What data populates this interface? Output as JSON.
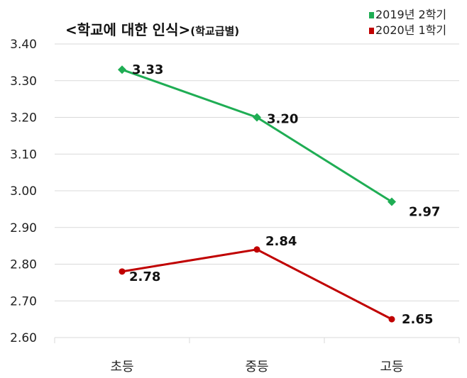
{
  "chart_data": {
    "type": "line",
    "title": "<학교에 대한 인식>",
    "subtitle": "(학교급별)",
    "categories": [
      "초등",
      "중등",
      "고등"
    ],
    "series": [
      {
        "name": "2019년 2학기",
        "values": [
          3.33,
          3.2,
          2.97
        ],
        "color": "#1fad54",
        "marker": "diamond"
      },
      {
        "name": "2020년 1학기",
        "values": [
          2.78,
          2.84,
          2.65
        ],
        "color": "#c00000",
        "marker": "circle"
      }
    ],
    "ylim": [
      2.6,
      3.4
    ],
    "yticks": [
      "2.60",
      "2.70",
      "2.80",
      "2.90",
      "3.00",
      "3.10",
      "3.20",
      "3.30",
      "3.40"
    ],
    "grid": true,
    "legend": "top-right"
  }
}
